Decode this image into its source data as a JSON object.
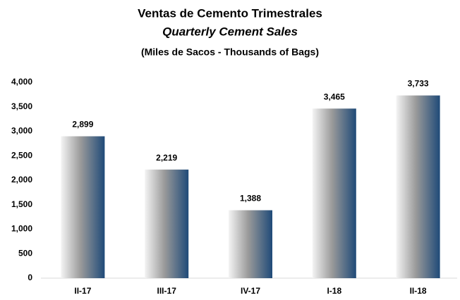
{
  "chart_data": {
    "type": "bar",
    "title": "Ventas de Cemento Trimestrales",
    "subtitle": "Quarterly Cement Sales",
    "units": "(Miles de Sacos - Thousands of Bags)",
    "categories": [
      "II-17",
      "III-17",
      "IV-17",
      "I-18",
      "II-18"
    ],
    "values": [
      2899,
      2219,
      1388,
      3465,
      3733
    ],
    "value_labels": [
      "2,899",
      "2,219",
      "1,388",
      "3,465",
      "3,733"
    ],
    "color": "#1f4a78",
    "ylim": [
      0,
      4000
    ],
    "yticks": [
      0,
      500,
      {
        "value": 1000,
        "label": "1,000"
      },
      {
        "value": 1500,
        "label": "1,500"
      },
      {
        "value": 2000,
        "label": "2,000"
      },
      {
        "value": 2500,
        "label": "2,500"
      },
      {
        "value": 3000,
        "label": "3,000"
      },
      {
        "value": 3500,
        "label": "3,500"
      },
      {
        "value": 4000,
        "label": "4,000"
      }
    ],
    "grid": false
  }
}
